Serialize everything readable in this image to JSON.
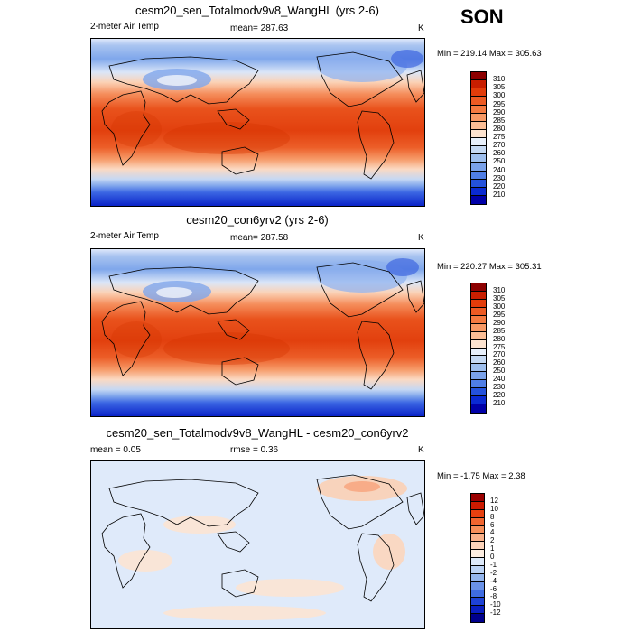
{
  "season": "SON",
  "panels": [
    {
      "title": "cesm20_sen_Totalmodv9v8_WangHL (yrs 2-6)",
      "left_label": "2-meter Air Temp",
      "center_label": "mean= 287.63",
      "unit": "K",
      "minmax": "Min = 219.14 Max = 305.63",
      "colorbar": {
        "labels": [
          "310",
          "305",
          "300",
          "295",
          "290",
          "285",
          "280",
          "275",
          "270",
          "260",
          "250",
          "240",
          "230",
          "220",
          "210"
        ],
        "colors": [
          "#8c0000",
          "#c81e00",
          "#e23c0a",
          "#ec5a23",
          "#f47a41",
          "#f89a66",
          "#fbbe96",
          "#fde3cf",
          "#e8f0fb",
          "#c5d9f3",
          "#9ebfee",
          "#7aa2ea",
          "#4f7ee6",
          "#2452dc",
          "#0a2ad2",
          "#0000a8"
        ]
      }
    },
    {
      "title": "cesm20_con6yrv2 (yrs 2-6)",
      "left_label": "2-meter Air Temp",
      "center_label": "mean= 287.58",
      "unit": "K",
      "minmax": "Min = 220.27 Max = 305.31",
      "colorbar": {
        "labels": [
          "310",
          "305",
          "300",
          "295",
          "290",
          "285",
          "280",
          "275",
          "270",
          "260",
          "250",
          "240",
          "230",
          "220",
          "210"
        ],
        "colors": [
          "#8c0000",
          "#c81e00",
          "#e23c0a",
          "#ec5a23",
          "#f47a41",
          "#f89a66",
          "#fbbe96",
          "#fde3cf",
          "#e8f0fb",
          "#c5d9f3",
          "#9ebfee",
          "#7aa2ea",
          "#4f7ee6",
          "#2452dc",
          "#0a2ad2",
          "#0000a8"
        ]
      }
    },
    {
      "title": "cesm20_sen_Totalmodv9v8_WangHL - cesm20_con6yrv2",
      "left_label": "mean =   0.05",
      "center_label": "rmse =   0.36",
      "unit": "K",
      "minmax": "Min =  -1.75 Max =   2.38",
      "colorbar": {
        "labels": [
          "12",
          "10",
          "8",
          "6",
          "4",
          "2",
          "1",
          "0",
          "-1",
          "-2",
          "-4",
          "-6",
          "-8",
          "-10",
          "-12"
        ],
        "colors": [
          "#9a0000",
          "#cc1a00",
          "#e6400f",
          "#f0652f",
          "#f68f5a",
          "#f9b28b",
          "#fcd3b9",
          "#fdeee2",
          "#dde9fa",
          "#bcd3f5",
          "#94b6ee",
          "#6a92e8",
          "#3f6ce2",
          "#1e42d6",
          "#0a1fc0",
          "#00008c"
        ]
      }
    }
  ]
}
